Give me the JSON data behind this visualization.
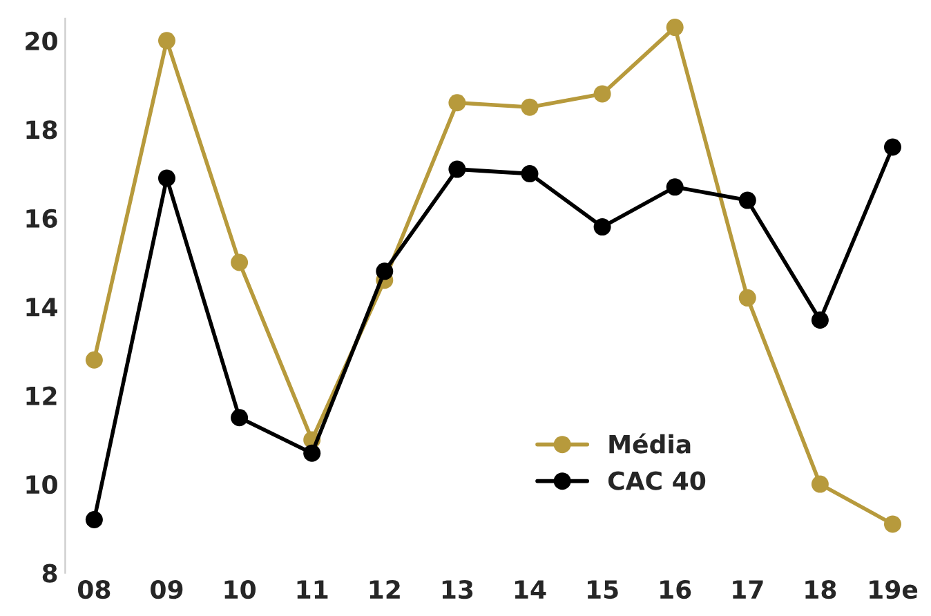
{
  "chart_data": {
    "type": "line",
    "categories": [
      "08",
      "09",
      "10",
      "11",
      "12",
      "13",
      "14",
      "15",
      "16",
      "17",
      "18",
      "19e"
    ],
    "series": [
      {
        "name": "Média",
        "color": "#b79a3c",
        "values": [
          12.8,
          20.0,
          15.0,
          11.0,
          14.6,
          18.6,
          18.5,
          18.8,
          20.3,
          14.2,
          10.0,
          9.1
        ]
      },
      {
        "name": "CAC 40",
        "color": "#000000",
        "values": [
          9.2,
          16.9,
          11.5,
          10.7,
          14.8,
          17.1,
          17.0,
          15.8,
          16.7,
          16.4,
          13.7,
          17.6
        ]
      }
    ],
    "ylim": [
      8,
      20.5
    ],
    "yticks": [
      8,
      10,
      12,
      14,
      16,
      18,
      20
    ],
    "grid": false,
    "legend": "bottom",
    "marker": "circle",
    "line_style": "solid"
  }
}
